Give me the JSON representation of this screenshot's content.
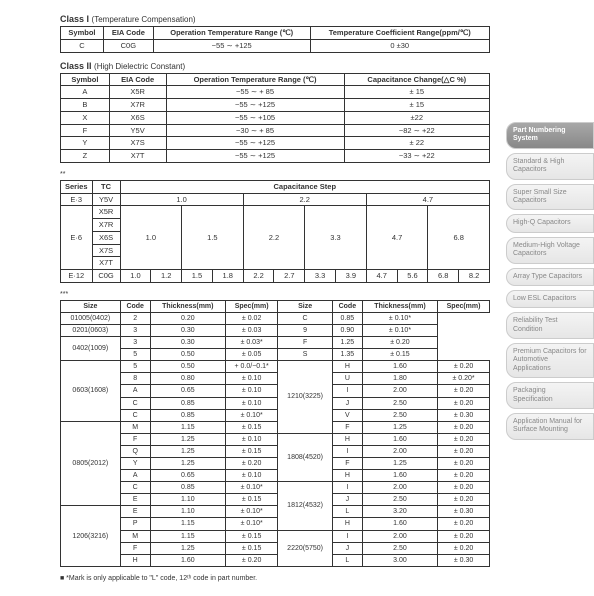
{
  "class1": {
    "title": "Class I",
    "subtitle": "(Temperature Compensation)",
    "headers": [
      "Symbol",
      "EIA Code",
      "Operation Temperature Range (℃)",
      "Temperature Coefficient Range(ppm/℃)"
    ],
    "rows": [
      [
        "C",
        "C0G",
        "−55 ∼ +125",
        "0 ±30"
      ]
    ]
  },
  "class2": {
    "title": "Class II",
    "subtitle": "(High Dielectric Constant)",
    "headers": [
      "Symbol",
      "EIA Code",
      "Operation Temperature Range (℃)",
      "Capacitance Change(△C %)"
    ],
    "rows": [
      [
        "A",
        "X5R",
        "−55 ∼ + 85",
        "± 15"
      ],
      [
        "B",
        "X7R",
        "−55 ∼ +125",
        "± 15"
      ],
      [
        "X",
        "X6S",
        "−55 ∼ +105",
        "±22"
      ],
      [
        "F",
        "Y5V",
        "−30 ∼ + 85",
        "−82 ∼ +22"
      ],
      [
        "Y",
        "X7S",
        "−55 ∼ +125",
        "± 22"
      ],
      [
        "Z",
        "X7T",
        "−55 ∼ +125",
        "−33 ∼ +22"
      ]
    ]
  },
  "capstep": {
    "mark": "**",
    "headers": [
      "Series",
      "TC",
      "Capacitance Step"
    ],
    "row_e3_series": "E·3",
    "row_e3_tc": "Y5V",
    "row_e3_vals": [
      "1.0",
      "2.2",
      "4.7"
    ],
    "row_e6_series": "E·6",
    "row_e6_tc": [
      "X5R",
      "X7R",
      "X6S",
      "X7S",
      "X7T"
    ],
    "row_e6_vals": [
      "1.0",
      "1.5",
      "2.2",
      "3.3",
      "4.7",
      "6.8"
    ],
    "row_e12_series": "E·12",
    "row_e12_tc": "C0G",
    "row_e12_vals": [
      "1.0",
      "1.2",
      "1.5",
      "1.8",
      "2.2",
      "2.7",
      "3.3",
      "3.9",
      "4.7",
      "5.6",
      "6.8",
      "8.2"
    ]
  },
  "thickness": {
    "mark": "***",
    "headers": [
      "Size",
      "Code",
      "Thickness(mm)",
      "Spec(mm)",
      "Size",
      "Code",
      "Thickness(mm)",
      "Spec(mm)"
    ],
    "rows": [
      [
        "01005(0402)",
        "2",
        "0.20",
        "± 0.02",
        "",
        "C",
        "0.85",
        "± 0.10*"
      ],
      [
        "0201(0603)",
        "3",
        "0.30",
        "± 0.03",
        "",
        "9",
        "0.90",
        "± 0.10*"
      ],
      [
        "0402(1009)",
        "3",
        "0.30",
        "± 0.03*",
        "",
        "F",
        "1.25",
        "± 0.20"
      ],
      [
        "",
        "5",
        "0.50",
        "± 0.05",
        "",
        "S",
        "1.35",
        "± 0.15"
      ],
      [
        "0603(1608)",
        "5",
        "0.50",
        "+ 0.0/−0.1*",
        "1210(3225)",
        "H",
        "1.60",
        "± 0.20"
      ],
      [
        "",
        "8",
        "0.80",
        "± 0.10",
        "",
        "U",
        "1.80",
        "± 0.20*"
      ],
      [
        "",
        "A",
        "0.65",
        "± 0.10",
        "",
        "I",
        "2.00",
        "± 0.20"
      ],
      [
        "",
        "C",
        "0.85",
        "± 0.10",
        "",
        "J",
        "2.50",
        "± 0.20"
      ],
      [
        "",
        "C",
        "0.85",
        "± 0.10*",
        "",
        "V",
        "2.50",
        "± 0.30"
      ],
      [
        "0805(2012)",
        "M",
        "1.15",
        "± 0.15",
        "",
        "F",
        "1.25",
        "± 0.20"
      ],
      [
        "",
        "F",
        "1.25",
        "± 0.10",
        "1808(4520)",
        "H",
        "1.60",
        "± 0.20"
      ],
      [
        "",
        "Q",
        "1.25",
        "± 0.15",
        "",
        "I",
        "2.00",
        "± 0.20"
      ],
      [
        "",
        "Y",
        "1.25",
        "± 0.20",
        "",
        "F",
        "1.25",
        "± 0.20"
      ],
      [
        "",
        "A",
        "0.65",
        "± 0.10",
        "",
        "H",
        "1.60",
        "± 0.20"
      ],
      [
        "",
        "C",
        "0.85",
        "± 0.10*",
        "1812(4532)",
        "I",
        "2.00",
        "± 0.20"
      ],
      [
        "",
        "E",
        "1.10",
        "± 0.15",
        "",
        "J",
        "2.50",
        "± 0.20"
      ],
      [
        "1206(3216)",
        "E",
        "1.10",
        "± 0.10*",
        "",
        "L",
        "3.20",
        "± 0.30"
      ],
      [
        "",
        "P",
        "1.15",
        "± 0.10*",
        "",
        "H",
        "1.60",
        "± 0.20"
      ],
      [
        "",
        "M",
        "1.15",
        "± 0.15",
        "2220(5750)",
        "I",
        "2.00",
        "± 0.20"
      ],
      [
        "",
        "F",
        "1.25",
        "± 0.15",
        "",
        "J",
        "2.50",
        "± 0.20"
      ],
      [
        "",
        "H",
        "1.60",
        "± 0.20",
        "",
        "L",
        "3.00",
        "± 0.30"
      ]
    ]
  },
  "footnote": "■ *Mark is only applicable to \"L\" code, 12ᵗʰ code in part number.",
  "sidebar": {
    "items": [
      {
        "label": "Part Numbering System",
        "active": true
      },
      {
        "label": "Standard & High Capacitors",
        "active": false
      },
      {
        "label": "Super Small Size Capacitors",
        "active": false
      },
      {
        "label": "High-Q Capacitors",
        "active": false
      },
      {
        "label": "Medium-High Voltage Capacitors",
        "active": false
      },
      {
        "label": "Array Type Capacitors",
        "active": false
      },
      {
        "label": "Low ESL Capacitors",
        "active": false
      },
      {
        "label": "Reliability Test Condition",
        "active": false
      },
      {
        "label": "Premium Capacitors for Automotive Applications",
        "active": false
      },
      {
        "label": "Packaging Specification",
        "active": false
      },
      {
        "label": "Application Manual for Surface Mounting",
        "active": false
      }
    ]
  }
}
